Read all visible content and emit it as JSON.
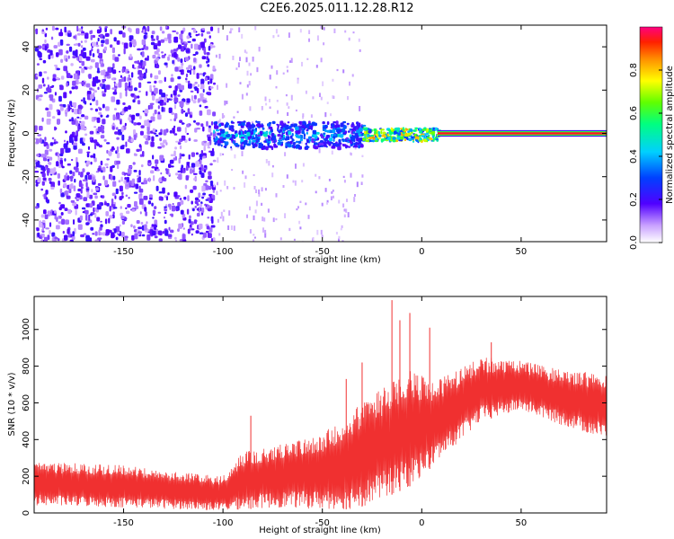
{
  "title": "C2E6.2025.011.12.28.R12",
  "chart_data": [
    {
      "type": "heatmap",
      "title": "",
      "xlabel": "Height of straight line (km)",
      "ylabel": "Frequency (Hz)",
      "xlim": [
        -195,
        93
      ],
      "ylim": [
        -50,
        50
      ],
      "x_ticks": [
        "-150",
        "-100",
        "-50",
        "0",
        "50"
      ],
      "y_ticks": [
        "-40",
        "-20",
        "0",
        "20",
        "40"
      ],
      "colorbar": {
        "label": "Normalized spectral amplitude",
        "ticks": [
          "0.0",
          "0.2",
          "0.4",
          "0.6",
          "0.8"
        ],
        "range": [
          0,
          1
        ]
      },
      "description_regions": [
        {
          "x": [
            -195,
            -105
          ],
          "freq_spread": 50,
          "amplitude": 0.1
        },
        {
          "x": [
            -105,
            -30
          ],
          "freq_spread": 6,
          "amplitude": 0.3
        },
        {
          "x": [
            -30,
            8
          ],
          "freq_spread": 3,
          "amplitude": 0.6
        },
        {
          "x": [
            8,
            93
          ],
          "freq_spread": 1.5,
          "amplitude": 0.95
        }
      ]
    },
    {
      "type": "line",
      "title": "",
      "xlabel": "Height of straight line (km)",
      "ylabel": "SNR (10 * v/v)",
      "xlim": [
        -195,
        93
      ],
      "ylim": [
        0,
        1180
      ],
      "x_ticks": [
        "-150",
        "-100",
        "-50",
        "0",
        "50"
      ],
      "y_ticks": [
        "0",
        "200",
        "400",
        "600",
        "800",
        "1000"
      ],
      "series_color": "#f03030",
      "envelope": [
        {
          "x": -195,
          "low": 40,
          "high": 280
        },
        {
          "x": -150,
          "low": 30,
          "high": 260
        },
        {
          "x": -120,
          "low": 20,
          "high": 220
        },
        {
          "x": -100,
          "low": 10,
          "high": 200
        },
        {
          "x": -90,
          "low": 20,
          "high": 330
        },
        {
          "x": -70,
          "low": 30,
          "high": 380
        },
        {
          "x": -50,
          "low": 20,
          "high": 430
        },
        {
          "x": -35,
          "low": 20,
          "high": 560
        },
        {
          "x": -25,
          "low": 50,
          "high": 640
        },
        {
          "x": -15,
          "low": 100,
          "high": 720
        },
        {
          "x": -5,
          "low": 150,
          "high": 780
        },
        {
          "x": 5,
          "low": 250,
          "high": 720
        },
        {
          "x": 15,
          "low": 350,
          "high": 760
        },
        {
          "x": 30,
          "low": 500,
          "high": 850
        },
        {
          "x": 50,
          "low": 560,
          "high": 830
        },
        {
          "x": 70,
          "low": 480,
          "high": 780
        },
        {
          "x": 93,
          "low": 400,
          "high": 760
        }
      ],
      "spikes": [
        {
          "x": -86,
          "y": 530
        },
        {
          "x": -38,
          "y": 730
        },
        {
          "x": -30,
          "y": 820
        },
        {
          "x": -15,
          "y": 1160
        },
        {
          "x": -11,
          "y": 1050
        },
        {
          "x": -6,
          "y": 1090
        },
        {
          "x": 4,
          "y": 1010
        },
        {
          "x": 35,
          "y": 930
        }
      ]
    }
  ]
}
